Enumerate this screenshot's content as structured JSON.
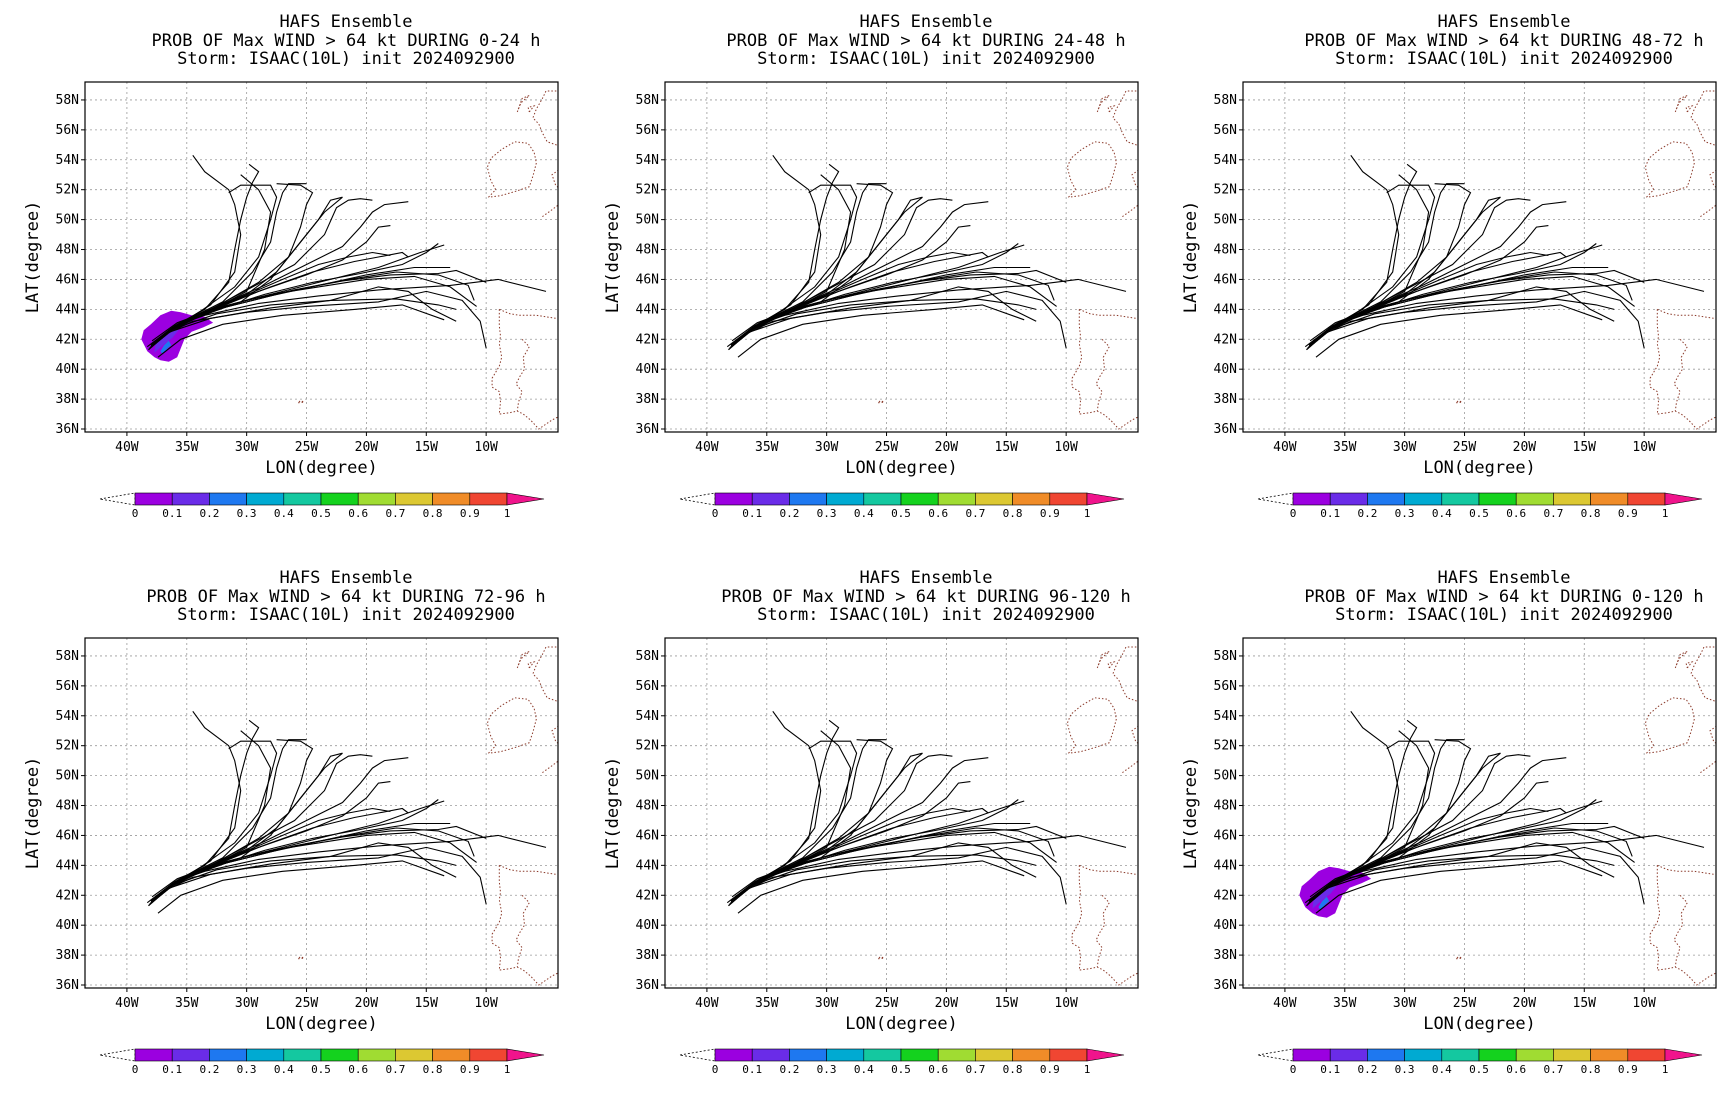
{
  "figure": {
    "header": "HAFS Ensemble",
    "storm_line": "Storm: ISAAC(10L) init 2024092900",
    "xlabel": "LON(degree)",
    "ylabel": "LAT(degree)"
  },
  "colorbar": {
    "labels": [
      "0",
      "0.1",
      "0.2",
      "0.3",
      "0.4",
      "0.5",
      "0.6",
      "0.7",
      "0.8",
      "0.9",
      "1"
    ],
    "colors": [
      "#9b00e0",
      "#6a2ce8",
      "#1e78f0",
      "#00aad2",
      "#14c8a0",
      "#14d21e",
      "#a0dc32",
      "#dcc832",
      "#f08c28",
      "#f04632",
      "#f0148c"
    ]
  },
  "chart_data": [
    {
      "type": "map",
      "title": "PROB OF Max WIND > 64 kt DURING  0-24 h",
      "lon_range": [
        -43.5,
        -4
      ],
      "lat_range": [
        35.8,
        59.2
      ],
      "x_ticks": [
        "40W",
        "35W",
        "30W",
        "25W",
        "20W",
        "15W",
        "10W"
      ],
      "y_ticks": [
        "36N",
        "38N",
        "40N",
        "42N",
        "44N",
        "46N",
        "48N",
        "50N",
        "52N",
        "54N",
        "56N",
        "58N"
      ],
      "probability_blob": "large",
      "grid": true
    },
    {
      "type": "map",
      "title": "PROB OF Max WIND > 64 kt DURING 24-48 h",
      "lon_range": [
        -43.5,
        -4
      ],
      "lat_range": [
        35.8,
        59.2
      ],
      "x_ticks": [
        "40W",
        "35W",
        "30W",
        "25W",
        "20W",
        "15W",
        "10W"
      ],
      "y_ticks": [
        "36N",
        "38N",
        "40N",
        "42N",
        "44N",
        "46N",
        "48N",
        "50N",
        "52N",
        "54N",
        "56N",
        "58N"
      ],
      "probability_blob": "none",
      "grid": true
    },
    {
      "type": "map",
      "title": "PROB OF Max WIND > 64 kt DURING 48-72 h",
      "lon_range": [
        -43.5,
        -4
      ],
      "lat_range": [
        35.8,
        59.2
      ],
      "x_ticks": [
        "40W",
        "35W",
        "30W",
        "25W",
        "20W",
        "15W",
        "10W"
      ],
      "y_ticks": [
        "36N",
        "38N",
        "40N",
        "42N",
        "44N",
        "46N",
        "48N",
        "50N",
        "52N",
        "54N",
        "56N",
        "58N"
      ],
      "probability_blob": "none",
      "grid": true
    },
    {
      "type": "map",
      "title": "PROB OF Max WIND > 64 kt DURING 72-96 h",
      "lon_range": [
        -43.5,
        -4
      ],
      "lat_range": [
        35.8,
        59.2
      ],
      "x_ticks": [
        "40W",
        "35W",
        "30W",
        "25W",
        "20W",
        "15W",
        "10W"
      ],
      "y_ticks": [
        "36N",
        "38N",
        "40N",
        "42N",
        "44N",
        "46N",
        "48N",
        "50N",
        "52N",
        "54N",
        "56N",
        "58N"
      ],
      "probability_blob": "none",
      "grid": true
    },
    {
      "type": "map",
      "title": "PROB OF Max WIND > 64 kt DURING 96-120 h",
      "lon_range": [
        -43.5,
        -4
      ],
      "lat_range": [
        35.8,
        59.2
      ],
      "x_ticks": [
        "40W",
        "35W",
        "30W",
        "25W",
        "20W",
        "15W",
        "10W"
      ],
      "y_ticks": [
        "36N",
        "38N",
        "40N",
        "42N",
        "44N",
        "46N",
        "48N",
        "50N",
        "52N",
        "54N",
        "56N",
        "58N"
      ],
      "probability_blob": "none",
      "grid": true
    },
    {
      "type": "map",
      "title": "PROB OF Max WIND > 64 kt DURING 0-120 h",
      "lon_range": [
        -43.5,
        -4
      ],
      "lat_range": [
        35.8,
        59.2
      ],
      "x_ticks": [
        "40W",
        "35W",
        "30W",
        "25W",
        "20W",
        "15W",
        "10W"
      ],
      "y_ticks": [
        "36N",
        "38N",
        "40N",
        "42N",
        "44N",
        "46N",
        "48N",
        "50N",
        "52N",
        "54N",
        "56N",
        "58N"
      ],
      "probability_blob": "large",
      "grid": true
    }
  ],
  "tracks": [
    [
      [
        -38.3,
        41.5
      ],
      [
        -36.5,
        42.6
      ],
      [
        -34.5,
        43.5
      ],
      [
        -31,
        44.4
      ],
      [
        -27,
        45.2
      ],
      [
        -23,
        46.0
      ],
      [
        -19,
        46.8
      ],
      [
        -15.5,
        47.8
      ],
      [
        -13.5,
        48.3
      ]
    ],
    [
      [
        -38.0,
        41.6
      ],
      [
        -36.2,
        42.8
      ],
      [
        -34,
        43.7
      ],
      [
        -30,
        44.5
      ],
      [
        -26,
        45.3
      ],
      [
        -22,
        45.9
      ],
      [
        -18,
        46.3
      ],
      [
        -14,
        46.4
      ],
      [
        -12.5,
        46.6
      ],
      [
        -10,
        45.8
      ]
    ],
    [
      [
        -37.8,
        41.7
      ],
      [
        -36,
        42.9
      ],
      [
        -33.5,
        43.6
      ],
      [
        -29,
        44.4
      ],
      [
        -24,
        44.9
      ],
      [
        -19,
        45.3
      ],
      [
        -13,
        45.6
      ],
      [
        -9,
        46.0
      ],
      [
        -5,
        45.2
      ]
    ],
    [
      [
        -38.2,
        41.3
      ],
      [
        -36.6,
        42.4
      ],
      [
        -34.5,
        43.2
      ],
      [
        -30,
        43.8
      ],
      [
        -25,
        44.2
      ],
      [
        -19,
        44.5
      ],
      [
        -15,
        45.2
      ],
      [
        -12,
        44.6
      ],
      [
        -10.5,
        43.2
      ],
      [
        -10,
        41.4
      ]
    ],
    [
      [
        -37.4,
        40.8
      ],
      [
        -35.5,
        42.0
      ],
      [
        -32,
        43.0
      ],
      [
        -27,
        43.6
      ],
      [
        -21,
        44.0
      ],
      [
        -17,
        44.3
      ],
      [
        -13.5,
        43.3
      ]
    ],
    [
      [
        -37.9,
        41.9
      ],
      [
        -35.8,
        43.1
      ],
      [
        -32.5,
        44.1
      ],
      [
        -28,
        45.0
      ],
      [
        -24,
        45.5
      ],
      [
        -20,
        46.0
      ],
      [
        -16,
        46.2
      ],
      [
        -13,
        45.5
      ],
      [
        -10.8,
        44.2
      ]
    ],
    [
      [
        -38.1,
        41.4
      ],
      [
        -36.4,
        42.5
      ],
      [
        -33,
        43.4
      ],
      [
        -28,
        44.1
      ],
      [
        -23,
        44.6
      ],
      [
        -19,
        45.5
      ],
      [
        -16.5,
        45.2
      ],
      [
        -14.5,
        44.0
      ],
      [
        -12.5,
        43.2
      ]
    ],
    [
      [
        -38.0,
        41.5
      ],
      [
        -36.2,
        42.7
      ],
      [
        -33.2,
        43.8
      ],
      [
        -30,
        45.2
      ],
      [
        -28.5,
        48.0
      ],
      [
        -28,
        50.5
      ],
      [
        -29,
        52.0
      ],
      [
        -30.5,
        53.0
      ]
    ],
    [
      [
        -37.7,
        41.8
      ],
      [
        -35.6,
        43.0
      ],
      [
        -33,
        44.3
      ],
      [
        -31,
        46.5
      ],
      [
        -30.5,
        49.0
      ],
      [
        -31,
        51.0
      ],
      [
        -31.5,
        52.0
      ],
      [
        -33.5,
        53.2
      ],
      [
        -34.5,
        54.3
      ]
    ],
    [
      [
        -37.9,
        41.6
      ],
      [
        -36,
        42.9
      ],
      [
        -33.5,
        44.0
      ],
      [
        -31.5,
        45.8
      ],
      [
        -31,
        48.0
      ],
      [
        -30.5,
        50.0
      ],
      [
        -30,
        51.5
      ],
      [
        -29.5,
        52.5
      ],
      [
        -29,
        53.2
      ],
      [
        -29.8,
        53.7
      ]
    ],
    [
      [
        -38.1,
        41.4
      ],
      [
        -36.3,
        42.7
      ],
      [
        -33.8,
        43.9
      ],
      [
        -31,
        45.5
      ],
      [
        -29,
        47.5
      ],
      [
        -28,
        50.0
      ],
      [
        -27.5,
        51.5
      ],
      [
        -28,
        52.3
      ],
      [
        -30.5,
        52.3
      ],
      [
        -31.5,
        51.8
      ]
    ],
    [
      [
        -37.6,
        41.9
      ],
      [
        -35.5,
        43.1
      ],
      [
        -32,
        44.5
      ],
      [
        -29.5,
        46.5
      ],
      [
        -28,
        48.5
      ],
      [
        -27.5,
        50.5
      ],
      [
        -27,
        51.8
      ],
      [
        -26.5,
        52.4
      ],
      [
        -25,
        52.4
      ]
    ],
    [
      [
        -37.8,
        41.7
      ],
      [
        -35.8,
        43.0
      ],
      [
        -32.5,
        44.2
      ],
      [
        -29,
        45.8
      ],
      [
        -26.5,
        47.5
      ],
      [
        -25.5,
        49.5
      ],
      [
        -25,
        51.0
      ],
      [
        -24.5,
        51.8
      ],
      [
        -25.5,
        52.3
      ],
      [
        -27.5,
        52.4
      ]
    ],
    [
      [
        -38.0,
        41.5
      ],
      [
        -36,
        42.8
      ],
      [
        -33,
        44.0
      ],
      [
        -29.5,
        45.5
      ],
      [
        -26,
        47.0
      ],
      [
        -23.5,
        49.0
      ],
      [
        -22.5,
        50.8
      ],
      [
        -21.5,
        51.3
      ],
      [
        -20.5,
        51.4
      ],
      [
        -19.5,
        51.3
      ]
    ],
    [
      [
        -37.9,
        41.6
      ],
      [
        -35.9,
        42.9
      ],
      [
        -32.5,
        44.2
      ],
      [
        -28.5,
        45.6
      ],
      [
        -25,
        47.0
      ],
      [
        -22,
        48.2
      ],
      [
        -20.5,
        49.5
      ],
      [
        -19.5,
        50.5
      ],
      [
        -18.5,
        51.0
      ],
      [
        -16.5,
        51.2
      ]
    ],
    [
      [
        -38.1,
        41.4
      ],
      [
        -36.1,
        42.7
      ],
      [
        -33,
        43.9
      ],
      [
        -29,
        45.2
      ],
      [
        -25,
        46.3
      ],
      [
        -22,
        47.3
      ],
      [
        -20,
        48.5
      ],
      [
        -19,
        49.5
      ],
      [
        -18,
        49.6
      ]
    ],
    [
      [
        -37.8,
        41.7
      ],
      [
        -35.7,
        43.0
      ],
      [
        -32,
        44.3
      ],
      [
        -28,
        45.5
      ],
      [
        -24.5,
        46.5
      ],
      [
        -21,
        47.2
      ],
      [
        -19,
        47.5
      ],
      [
        -17,
        47.8
      ],
      [
        -16.5,
        47.5
      ]
    ],
    [
      [
        -38.0,
        41.5
      ],
      [
        -36,
        42.8
      ],
      [
        -32.5,
        44.0
      ],
      [
        -28.5,
        45.0
      ],
      [
        -24.5,
        45.8
      ],
      [
        -20.5,
        46.4
      ],
      [
        -17,
        47.0
      ],
      [
        -15,
        47.8
      ],
      [
        -14,
        48.4
      ]
    ],
    [
      [
        -37.7,
        41.8
      ],
      [
        -35.6,
        43.0
      ],
      [
        -32,
        44.1
      ],
      [
        -28,
        44.9
      ],
      [
        -24,
        45.6
      ],
      [
        -20,
        46.3
      ],
      [
        -16,
        46.8
      ],
      [
        -13,
        46.8
      ]
    ],
    [
      [
        -38.2,
        41.3
      ],
      [
        -36.5,
        42.5
      ],
      [
        -34,
        43.5
      ],
      [
        -30.5,
        44.5
      ],
      [
        -28,
        46.0
      ],
      [
        -26,
        48.0
      ],
      [
        -24.5,
        49.5
      ],
      [
        -23.5,
        50.5
      ],
      [
        -22,
        51.5
      ]
    ],
    [
      [
        -37.9,
        41.6
      ],
      [
        -35.9,
        42.9
      ],
      [
        -33,
        44.0
      ],
      [
        -30,
        45.0
      ],
      [
        -27.5,
        46.5
      ],
      [
        -25.5,
        48.5
      ],
      [
        -24,
        50.0
      ],
      [
        -23,
        51.3
      ],
      [
        -22,
        51.5
      ]
    ],
    [
      [
        -38.0,
        41.5
      ],
      [
        -36,
        42.8
      ],
      [
        -33.5,
        43.8
      ],
      [
        -30.5,
        44.8
      ],
      [
        -27,
        46.0
      ],
      [
        -24,
        47.0
      ],
      [
        -21.5,
        47.5
      ],
      [
        -19.5,
        47.8
      ],
      [
        -18,
        47.6
      ]
    ],
    [
      [
        -37.9,
        41.6
      ],
      [
        -35.9,
        42.9
      ],
      [
        -33.5,
        43.8
      ],
      [
        -30,
        44.6
      ],
      [
        -26,
        45.3
      ],
      [
        -21.5,
        46.0
      ],
      [
        -17.5,
        46.5
      ],
      [
        -14,
        46.3
      ],
      [
        -11.5,
        45.6
      ],
      [
        -11,
        44.6
      ]
    ],
    [
      [
        -38.0,
        41.5
      ],
      [
        -36.1,
        42.7
      ],
      [
        -32.5,
        43.7
      ],
      [
        -28,
        44.3
      ],
      [
        -23,
        44.6
      ],
      [
        -17.5,
        44.7
      ],
      [
        -14,
        44.3
      ],
      [
        -12.5,
        44.0
      ]
    ]
  ],
  "land": [
    [
      [
        -9.8,
        51.5
      ],
      [
        -9.2,
        52.0
      ],
      [
        -9.6,
        52.6
      ],
      [
        -9.9,
        53.5
      ],
      [
        -9.6,
        54.1
      ],
      [
        -8.7,
        54.7
      ],
      [
        -7.6,
        55.2
      ],
      [
        -6.5,
        55.1
      ],
      [
        -6.0,
        54.5
      ],
      [
        -5.8,
        53.8
      ],
      [
        -6.1,
        52.9
      ],
      [
        -6.4,
        52.2
      ],
      [
        -7.5,
        51.9
      ],
      [
        -8.8,
        51.6
      ],
      [
        -9.8,
        51.5
      ]
    ],
    [
      [
        -5.3,
        50.2
      ],
      [
        -4.6,
        50.6
      ],
      [
        -3.6,
        51.2
      ],
      [
        -3.2,
        51.6
      ],
      [
        -4.2,
        52.3
      ],
      [
        -4.5,
        53.0
      ],
      [
        -3.8,
        53.4
      ],
      [
        -3.1,
        53.6
      ],
      [
        -3.3,
        54.4
      ],
      [
        -3.8,
        54.9
      ],
      [
        -4.9,
        55.2
      ],
      [
        -5.3,
        55.8
      ],
      [
        -5.6,
        56.4
      ],
      [
        -6.1,
        56.8
      ],
      [
        -5.8,
        57.4
      ],
      [
        -5.3,
        58.1
      ],
      [
        -5.0,
        58.6
      ],
      [
        -4.0,
        58.6
      ]
    ],
    [
      [
        -6.4,
        57.2
      ],
      [
        -6.0,
        57.6
      ],
      [
        -6.5,
        57.5
      ],
      [
        -6.4,
        57.2
      ]
    ],
    [
      [
        -7.4,
        57.2
      ],
      [
        -7.1,
        57.8
      ],
      [
        -6.4,
        58.3
      ],
      [
        -7.0,
        58.1
      ],
      [
        -7.4,
        57.2
      ]
    ],
    [
      [
        -3.0,
        59.0
      ],
      [
        -2.6,
        59.2
      ],
      [
        -3.2,
        59.2
      ],
      [
        -3.0,
        59.0
      ]
    ],
    [
      [
        -8.9,
        44.0
      ],
      [
        -8.9,
        42.9
      ],
      [
        -8.8,
        42.2
      ],
      [
        -8.9,
        41.7
      ],
      [
        -8.7,
        40.8
      ],
      [
        -8.9,
        40.2
      ],
      [
        -9.5,
        39.4
      ],
      [
        -9.5,
        38.8
      ],
      [
        -8.9,
        38.5
      ],
      [
        -8.8,
        37.8
      ],
      [
        -8.9,
        37.0
      ],
      [
        -8.0,
        37.1
      ],
      [
        -7.4,
        37.2
      ],
      [
        -6.9,
        37.0
      ],
      [
        -6.3,
        36.6
      ],
      [
        -5.6,
        36.0
      ],
      [
        -4.5,
        36.6
      ],
      [
        -4.0,
        36.8
      ]
    ],
    [
      [
        -8.9,
        44.0
      ],
      [
        -8.0,
        43.7
      ],
      [
        -7.2,
        43.6
      ],
      [
        -5.8,
        43.6
      ],
      [
        -4.2,
        43.4
      ],
      [
        -4.0,
        43.4
      ]
    ],
    [
      [
        -7.0,
        42.0
      ],
      [
        -6.4,
        41.5
      ],
      [
        -6.9,
        40.8
      ],
      [
        -6.8,
        40.0
      ],
      [
        -7.2,
        39.5
      ],
      [
        -7.5,
        39.0
      ],
      [
        -7.0,
        38.5
      ],
      [
        -7.3,
        37.8
      ],
      [
        -7.4,
        37.2
      ]
    ],
    [
      [
        -25.7,
        37.75
      ],
      [
        -25.2,
        37.8
      ],
      [
        -25.5,
        37.9
      ],
      [
        -25.7,
        37.75
      ]
    ]
  ],
  "blob": {
    "outer": [
      [
        -38.8,
        42.0
      ],
      [
        -38.6,
        42.6
      ],
      [
        -38.0,
        43.0
      ],
      [
        -37.2,
        43.6
      ],
      [
        -36.3,
        43.9
      ],
      [
        -35.5,
        43.8
      ],
      [
        -34.6,
        43.6
      ],
      [
        -33.5,
        43.5
      ],
      [
        -32.8,
        43.1
      ],
      [
        -33.6,
        42.8
      ],
      [
        -34.6,
        42.5
      ],
      [
        -35.2,
        42.0
      ],
      [
        -35.5,
        41.4
      ],
      [
        -35.8,
        40.8
      ],
      [
        -36.5,
        40.5
      ],
      [
        -37.2,
        40.6
      ],
      [
        -37.7,
        40.8
      ],
      [
        -38.3,
        41.2
      ],
      [
        -38.8,
        42.0
      ]
    ],
    "inner": [
      [
        -37.7,
        41.1
      ],
      [
        -37.0,
        41.6
      ],
      [
        -36.2,
        42.1
      ],
      [
        -35.7,
        42.6
      ],
      [
        -36.3,
        42.8
      ],
      [
        -37.0,
        42.3
      ],
      [
        -37.6,
        41.8
      ],
      [
        -37.7,
        41.1
      ]
    ],
    "core": [
      [
        -37.0,
        41.0
      ],
      [
        -36.6,
        41.4
      ],
      [
        -36.3,
        41.6
      ],
      [
        -36.5,
        41.9
      ],
      [
        -36.9,
        41.6
      ],
      [
        -37.2,
        41.2
      ],
      [
        -37.0,
        41.0
      ]
    ]
  }
}
